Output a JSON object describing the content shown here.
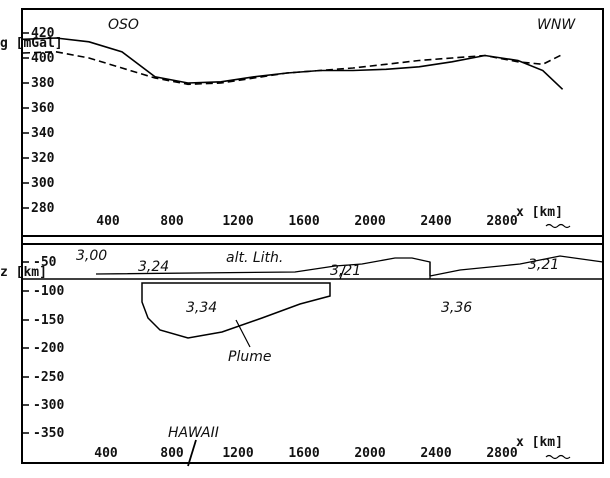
{
  "gravity": {
    "corner_left": "OSO",
    "corner_right": "WNW",
    "y_label": "g [mGal]",
    "y_ticks": [
      "420",
      "400",
      "380",
      "360",
      "340",
      "320",
      "300",
      "280"
    ],
    "x_ticks": [
      "400",
      "800",
      "1200",
      "1600",
      "2000",
      "2400",
      "2800"
    ],
    "x_label": "x [km]",
    "series": [
      {
        "style": "solid",
        "x": [
          0,
          200,
          400,
          600,
          800,
          1000,
          1200,
          1400,
          1600,
          1800,
          2000,
          2200,
          2400,
          2600,
          2800,
          3000,
          3150,
          3270
        ],
        "y": [
          415,
          416,
          413,
          405,
          385,
          380,
          381,
          385,
          388,
          390,
          390,
          391,
          393,
          397,
          402,
          398,
          390,
          375
        ]
      },
      {
        "style": "dashed",
        "x": [
          0,
          200,
          400,
          600,
          800,
          1000,
          1200,
          1400,
          1600,
          1800,
          2000,
          2200,
          2400,
          2600,
          2800,
          3000,
          3150,
          3270
        ],
        "y": [
          404,
          405,
          400,
          392,
          384,
          379,
          380,
          384,
          388,
          390,
          392,
          395,
          398,
          400,
          402,
          397,
          395,
          403
        ]
      }
    ]
  },
  "model": {
    "y_label": "z [km]",
    "y_ticks": [
      "-50",
      "-100",
      "-150",
      "-200",
      "-250",
      "-300",
      "-350"
    ],
    "x_ticks": [
      "400",
      "800",
      "1200",
      "1600",
      "2000",
      "2400",
      "2800"
    ],
    "x_label": "x [km]",
    "labels": {
      "density_top": "3,00",
      "density_lith": "3,24",
      "alt_lith": "alt. Lith.",
      "density_mid": "3,21",
      "density_right": "3,21",
      "density_plume": "3,34",
      "density_mantle": "3,36",
      "plume": "Plume",
      "hawaii": "HAWAII"
    }
  }
}
